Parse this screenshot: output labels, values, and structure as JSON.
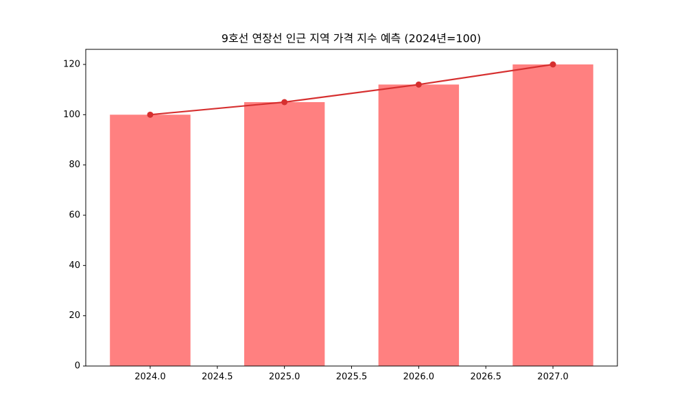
{
  "chart_data": {
    "type": "bar",
    "title": "9호선 연장선 인근 지역 가격 지수 예측 (2024년=100)",
    "x": [
      2024,
      2025,
      2026,
      2027
    ],
    "series": [
      {
        "type": "bar",
        "color": "#ff8080",
        "values": [
          100,
          105,
          112,
          120
        ]
      },
      {
        "type": "line",
        "color": "#d62f2f",
        "values": [
          100,
          105,
          112,
          120
        ]
      }
    ],
    "xlim": [
      2023.52,
      2027.48
    ],
    "xticks": [
      {
        "value": 2024,
        "label": "2024.0"
      },
      {
        "value": 2024.5,
        "label": "2024.5"
      },
      {
        "value": 2025,
        "label": "2025.0"
      },
      {
        "value": 2025.5,
        "label": "2025.5"
      },
      {
        "value": 2026,
        "label": "2026.0"
      },
      {
        "value": 2026.5,
        "label": "2026.5"
      },
      {
        "value": 2027,
        "label": "2027.0"
      }
    ],
    "ylim": [
      0,
      126
    ],
    "yticks": [
      0,
      20,
      40,
      60,
      80,
      100,
      120
    ],
    "grid": false
  }
}
